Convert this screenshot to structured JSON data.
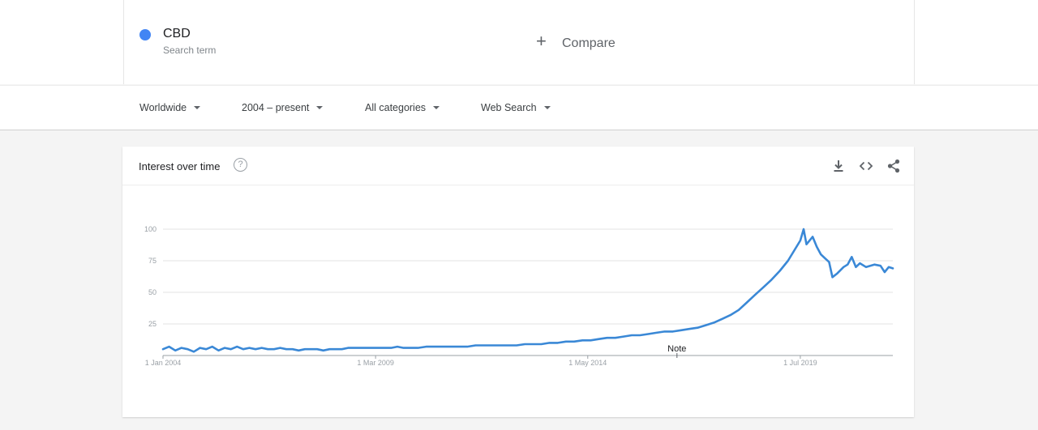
{
  "search_term": {
    "name": "CBD",
    "subtitle": "Search term",
    "color": "#4285f4"
  },
  "compare": {
    "label": "Compare"
  },
  "filters": [
    {
      "label": "Worldwide"
    },
    {
      "label": "2004 – present"
    },
    {
      "label": "All categories"
    },
    {
      "label": "Web Search"
    }
  ],
  "panel": {
    "title": "Interest over time",
    "help_symbol": "?",
    "tools": [
      "download-icon",
      "embed-code-icon",
      "share-icon"
    ]
  },
  "chart_data": {
    "type": "line",
    "title": "Interest over time",
    "xlabel": "",
    "ylabel": "",
    "ylim": [
      0,
      100
    ],
    "y_ticks": [
      25,
      50,
      75,
      100
    ],
    "x_ticks": [
      "1 Jan 2004",
      "1 Mar 2009",
      "1 May 2014",
      "1 Jul 2019"
    ],
    "x_tick_years": [
      2004.0,
      2009.17,
      2014.33,
      2019.5
    ],
    "x_range": [
      2004.0,
      2021.75
    ],
    "grid": true,
    "annotation": {
      "text": "Note",
      "x": 2016.5
    },
    "series": [
      {
        "color": "#3a88d6",
        "points": [
          [
            2004.0,
            5
          ],
          [
            2004.15,
            7
          ],
          [
            2004.3,
            4
          ],
          [
            2004.45,
            6
          ],
          [
            2004.6,
            5
          ],
          [
            2004.75,
            3
          ],
          [
            2004.9,
            6
          ],
          [
            2005.05,
            5
          ],
          [
            2005.2,
            7
          ],
          [
            2005.35,
            4
          ],
          [
            2005.5,
            6
          ],
          [
            2005.65,
            5
          ],
          [
            2005.8,
            7
          ],
          [
            2005.95,
            5
          ],
          [
            2006.1,
            6
          ],
          [
            2006.25,
            5
          ],
          [
            2006.4,
            6
          ],
          [
            2006.55,
            5
          ],
          [
            2006.7,
            5
          ],
          [
            2006.85,
            6
          ],
          [
            2007.0,
            5
          ],
          [
            2007.15,
            5
          ],
          [
            2007.3,
            4
          ],
          [
            2007.45,
            5
          ],
          [
            2007.6,
            5
          ],
          [
            2007.75,
            5
          ],
          [
            2007.9,
            4
          ],
          [
            2008.05,
            5
          ],
          [
            2008.2,
            5
          ],
          [
            2008.35,
            5
          ],
          [
            2008.5,
            6
          ],
          [
            2008.65,
            6
          ],
          [
            2008.8,
            6
          ],
          [
            2008.95,
            6
          ],
          [
            2009.1,
            6
          ],
          [
            2009.25,
            6
          ],
          [
            2009.4,
            6
          ],
          [
            2009.55,
            6
          ],
          [
            2009.7,
            7
          ],
          [
            2009.85,
            6
          ],
          [
            2010.0,
            6
          ],
          [
            2010.2,
            6
          ],
          [
            2010.4,
            7
          ],
          [
            2010.6,
            7
          ],
          [
            2010.8,
            7
          ],
          [
            2011.0,
            7
          ],
          [
            2011.2,
            7
          ],
          [
            2011.4,
            7
          ],
          [
            2011.6,
            8
          ],
          [
            2011.8,
            8
          ],
          [
            2012.0,
            8
          ],
          [
            2012.2,
            8
          ],
          [
            2012.4,
            8
          ],
          [
            2012.6,
            8
          ],
          [
            2012.8,
            9
          ],
          [
            2013.0,
            9
          ],
          [
            2013.2,
            9
          ],
          [
            2013.4,
            10
          ],
          [
            2013.6,
            10
          ],
          [
            2013.8,
            11
          ],
          [
            2014.0,
            11
          ],
          [
            2014.2,
            12
          ],
          [
            2014.4,
            12
          ],
          [
            2014.6,
            13
          ],
          [
            2014.8,
            14
          ],
          [
            2015.0,
            14
          ],
          [
            2015.2,
            15
          ],
          [
            2015.4,
            16
          ],
          [
            2015.6,
            16
          ],
          [
            2015.8,
            17
          ],
          [
            2016.0,
            18
          ],
          [
            2016.2,
            19
          ],
          [
            2016.4,
            19
          ],
          [
            2016.6,
            20
          ],
          [
            2016.8,
            21
          ],
          [
            2017.0,
            22
          ],
          [
            2017.2,
            24
          ],
          [
            2017.4,
            26
          ],
          [
            2017.6,
            29
          ],
          [
            2017.8,
            32
          ],
          [
            2018.0,
            36
          ],
          [
            2018.2,
            42
          ],
          [
            2018.4,
            48
          ],
          [
            2018.6,
            54
          ],
          [
            2018.8,
            60
          ],
          [
            2019.0,
            67
          ],
          [
            2019.2,
            75
          ],
          [
            2019.35,
            83
          ],
          [
            2019.5,
            91
          ],
          [
            2019.58,
            100
          ],
          [
            2019.65,
            88
          ],
          [
            2019.8,
            94
          ],
          [
            2019.9,
            86
          ],
          [
            2020.0,
            80
          ],
          [
            2020.1,
            77
          ],
          [
            2020.2,
            74
          ],
          [
            2020.28,
            62
          ],
          [
            2020.4,
            65
          ],
          [
            2020.55,
            70
          ],
          [
            2020.65,
            72
          ],
          [
            2020.75,
            78
          ],
          [
            2020.85,
            70
          ],
          [
            2020.95,
            73
          ],
          [
            2021.1,
            70
          ],
          [
            2021.3,
            72
          ],
          [
            2021.45,
            71
          ],
          [
            2021.55,
            66
          ],
          [
            2021.65,
            70
          ],
          [
            2021.75,
            69
          ]
        ]
      }
    ]
  }
}
